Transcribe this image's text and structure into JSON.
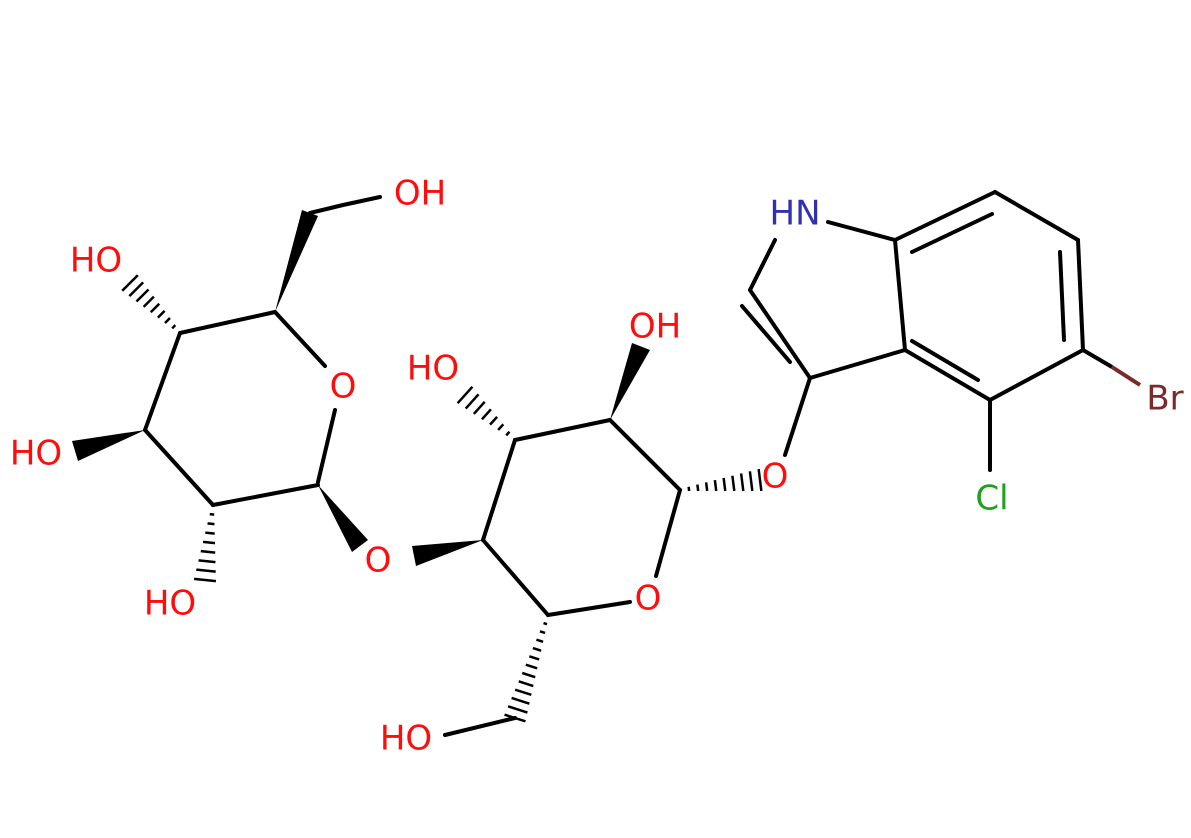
{
  "molecule": {
    "labels": [
      "OH",
      "HO",
      "O",
      "HO",
      "HO",
      "O",
      "HO",
      "OH",
      "O",
      "O",
      "HO",
      "HN",
      "Br",
      "Cl"
    ]
  }
}
